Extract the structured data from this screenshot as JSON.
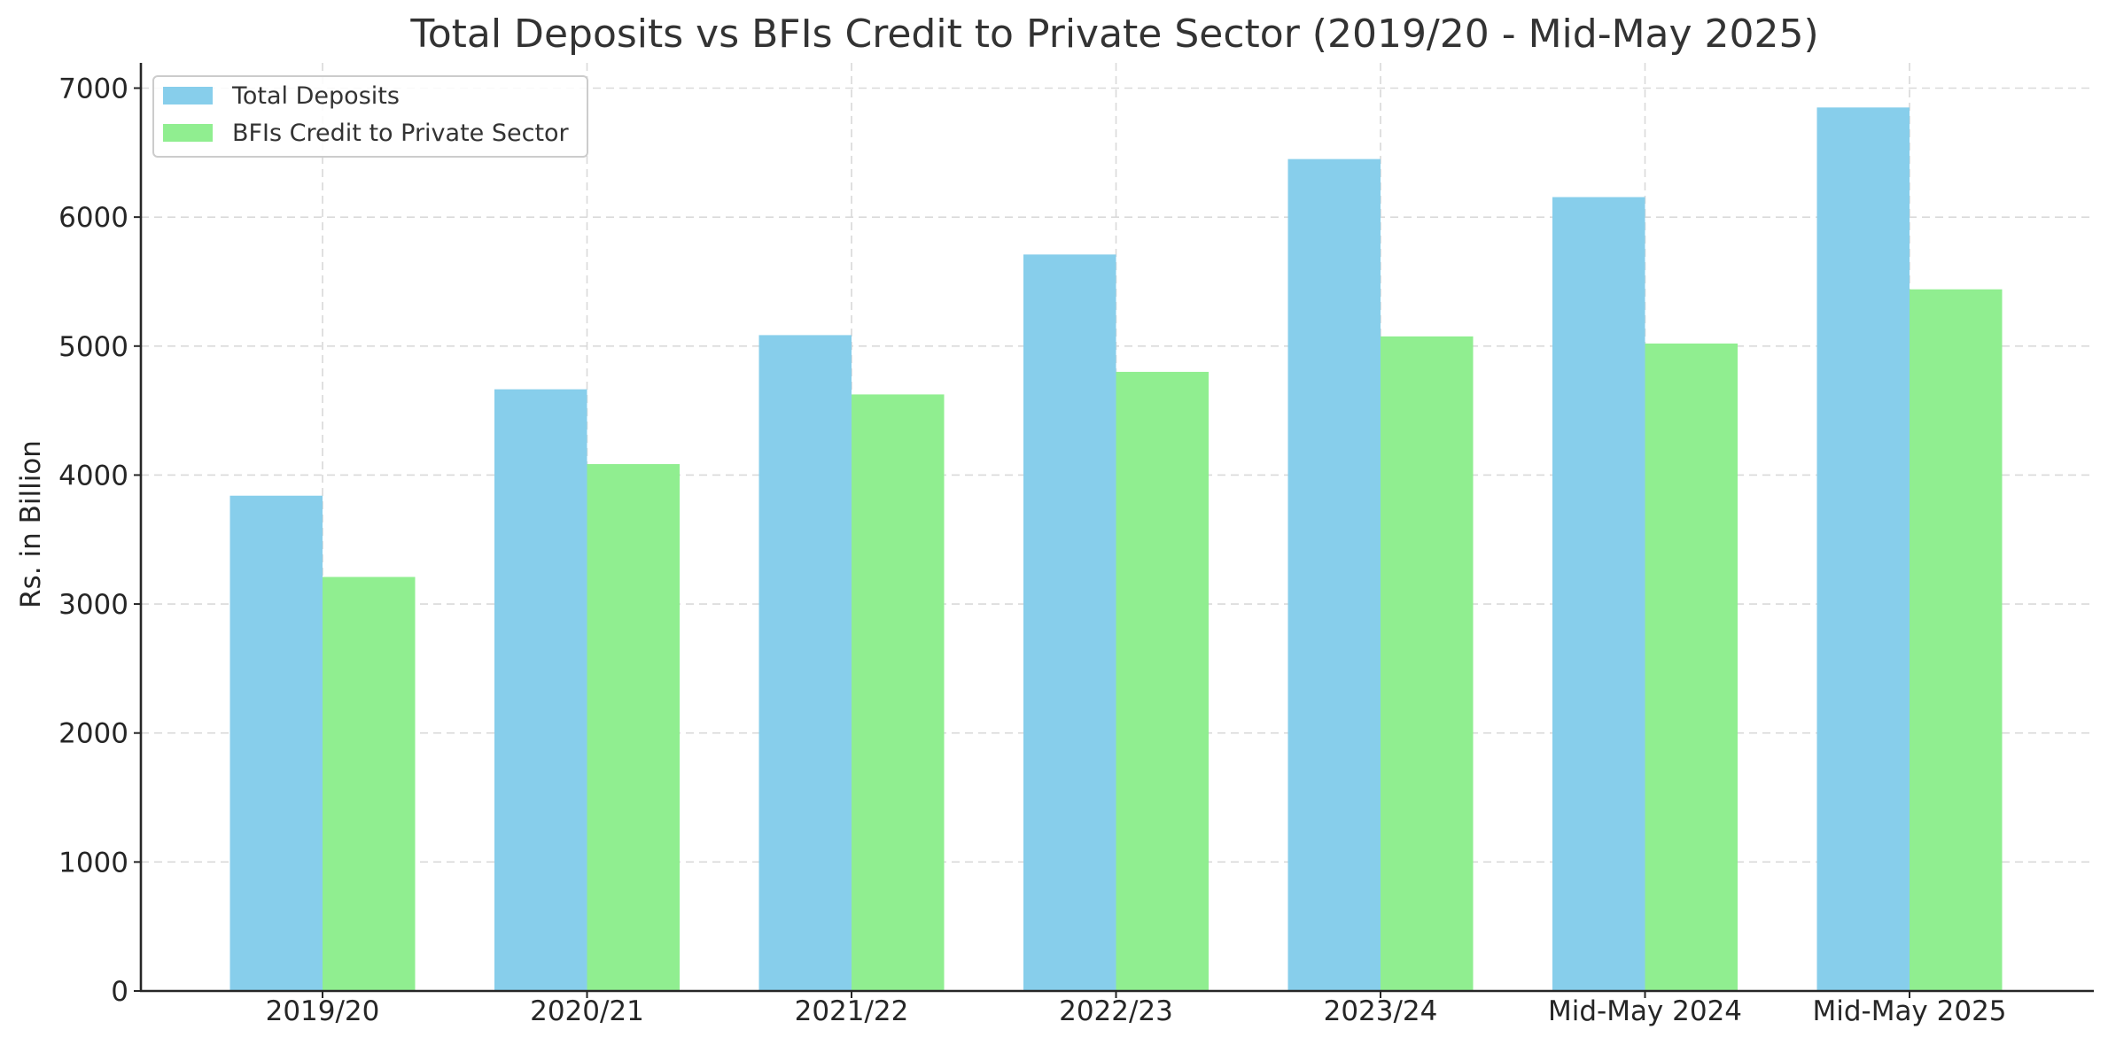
{
  "chart_data": {
    "type": "bar",
    "title": "Total Deposits vs BFIs Credit to Private Sector (2019/20 - Mid-May 2025)",
    "xlabel": "",
    "ylabel": "Rs. in Billion",
    "categories": [
      "2019/20",
      "2020/21",
      "2021/22",
      "2022/23",
      "2023/24",
      "Mid-May 2024",
      "Mid-May 2025"
    ],
    "series": [
      {
        "name": "Total Deposits",
        "color": "#87CEEB",
        "values": [
          3840,
          4665,
          5085,
          5710,
          6450,
          6155,
          6850
        ]
      },
      {
        "name": "BFIs Credit to Private Sector",
        "color": "#90EE90",
        "values": [
          3210,
          4085,
          4625,
          4800,
          5075,
          5020,
          5440
        ]
      }
    ],
    "ylim": [
      0,
      7200
    ],
    "yticks": [
      0,
      1000,
      2000,
      3000,
      4000,
      5000,
      6000,
      7000
    ],
    "grid": true,
    "grid_style": "dashed",
    "legend_position": "upper left"
  }
}
